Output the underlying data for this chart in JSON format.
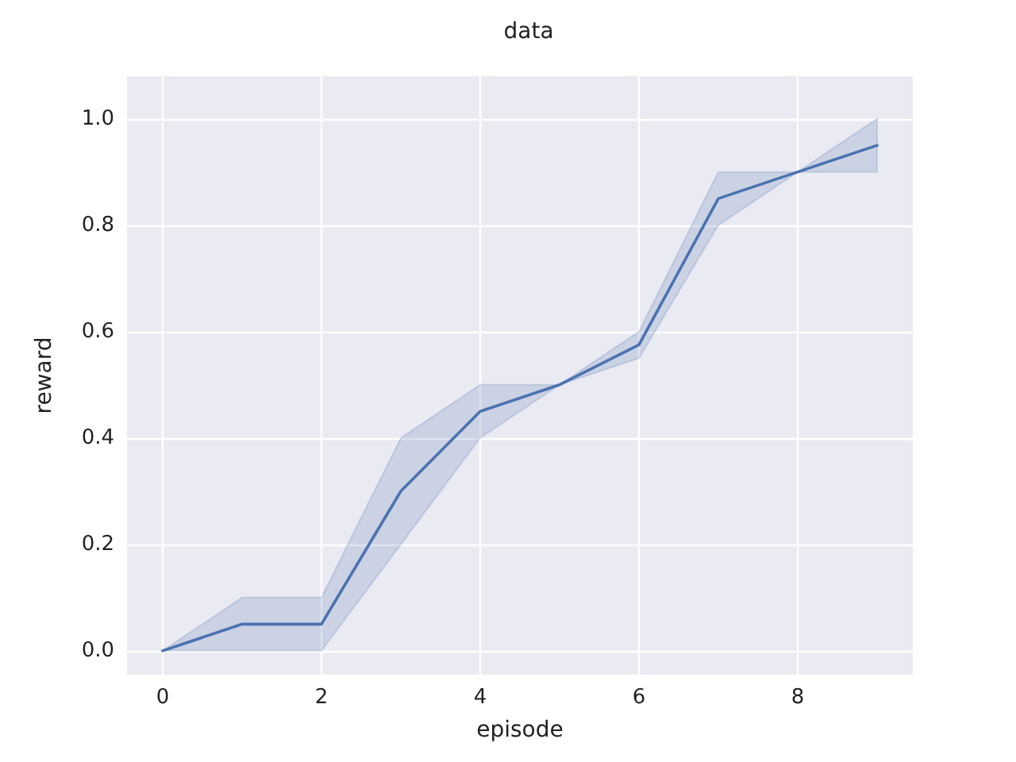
{
  "chart_data": {
    "type": "line",
    "title": "data",
    "xlabel": "episode",
    "ylabel": "reward",
    "x": [
      0,
      1,
      2,
      3,
      4,
      5,
      6,
      7,
      8,
      9
    ],
    "series": [
      {
        "color": "#4c72b0",
        "values": [
          0,
          0.05,
          0.05,
          0.3,
          0.45,
          0.5,
          0.575,
          0.85,
          0.9,
          0.95
        ],
        "lower": [
          0,
          0,
          0,
          0.2,
          0.4,
          0.5,
          0.55,
          0.8,
          0.9,
          0.9
        ],
        "upper": [
          0,
          0.1,
          0.1,
          0.4,
          0.5,
          0.5,
          0.6,
          0.9,
          0.9,
          1.0
        ]
      }
    ],
    "xlim": [
      -0.45,
      9.45
    ],
    "xticks": [
      0,
      2,
      4,
      6,
      8
    ],
    "ylim": [
      -0.045,
      1.08
    ],
    "yticks": [
      {
        "value": 0,
        "label": "0.0"
      },
      {
        "value": 0.2,
        "label": "0.2"
      },
      {
        "value": 0.4,
        "label": "0.4"
      },
      {
        "value": 0.6,
        "label": "0.6"
      },
      {
        "value": 0.8,
        "label": "0.8"
      },
      {
        "value": 1,
        "label": "1.0"
      }
    ],
    "grid": true,
    "marker": "none",
    "line_style": "solid"
  }
}
